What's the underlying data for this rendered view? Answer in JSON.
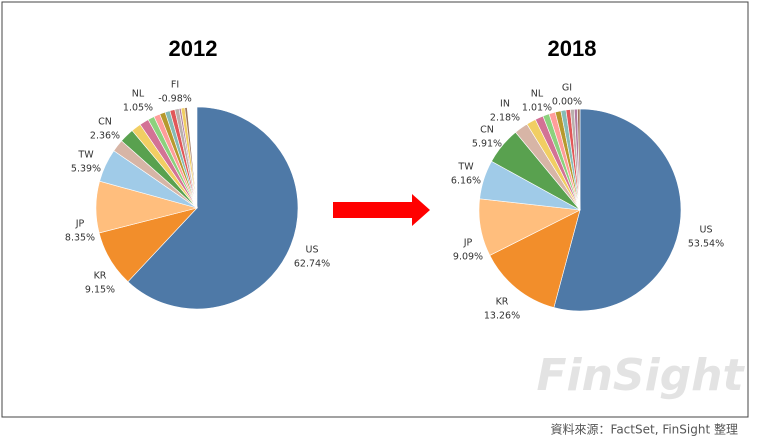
{
  "chart_data": [
    {
      "type": "pie",
      "title": "2012",
      "categories": [
        "US",
        "KR",
        "JP",
        "TW",
        null,
        "CN",
        null,
        null,
        "NL",
        null,
        null,
        null,
        null,
        null,
        null,
        null,
        "FI",
        null
      ],
      "values": [
        62.74,
        9.15,
        8.35,
        5.39,
        2.0,
        2.36,
        1.6,
        1.5,
        1.05,
        1.0,
        0.9,
        0.8,
        0.8,
        0.7,
        0.7,
        0.6,
        -0.98,
        0.6
      ],
      "value_labels": [
        "62.74%",
        "9.15%",
        "8.35%",
        "5.39%",
        null,
        "2.36%",
        null,
        null,
        "1.05%",
        null,
        null,
        null,
        null,
        null,
        null,
        null,
        "-0.98%",
        null
      ],
      "colors": [
        "#4e79a7",
        "#f28e2b",
        "#ffbe7d",
        "#a0cbe8",
        "#d7b5a6",
        "#59a14f",
        "#f1ce63",
        "#d37295",
        "#8cd17d",
        "#ff9d9a",
        "#b6992d",
        "#86bcb6",
        "#e15759",
        "#bab0ac",
        "#b07aa1",
        "#fabfd2",
        "#9d7660",
        "#f1ce63"
      ]
    },
    {
      "type": "pie",
      "title": "2018",
      "categories": [
        "US",
        "KR",
        "JP",
        "TW",
        "CN",
        "IN",
        null,
        null,
        "NL",
        null,
        null,
        null,
        null,
        null,
        null,
        "GI",
        null
      ],
      "values": [
        53.54,
        13.26,
        9.09,
        6.16,
        5.91,
        2.18,
        1.5,
        1.3,
        1.01,
        1.0,
        0.9,
        0.8,
        0.7,
        0.6,
        0.5,
        0.0,
        0.4
      ],
      "value_labels": [
        "53.54%",
        "13.26%",
        "9.09%",
        "6.16%",
        "5.91%",
        "2.18%",
        null,
        null,
        "1.01%",
        null,
        null,
        null,
        null,
        null,
        null,
        "0.00%",
        null
      ],
      "colors": [
        "#4e79a7",
        "#f28e2b",
        "#ffbe7d",
        "#a0cbe8",
        "#59a14f",
        "#d7b5a6",
        "#f1ce63",
        "#d37295",
        "#8cd17d",
        "#ff9d9a",
        "#b6992d",
        "#86bcb6",
        "#e15759",
        "#bab0ac",
        "#b07aa1",
        "#fabfd2",
        "#9d7660"
      ]
    }
  ],
  "watermark": "FinSight",
  "source": "資料來源：FactSet, FinSight 整理"
}
